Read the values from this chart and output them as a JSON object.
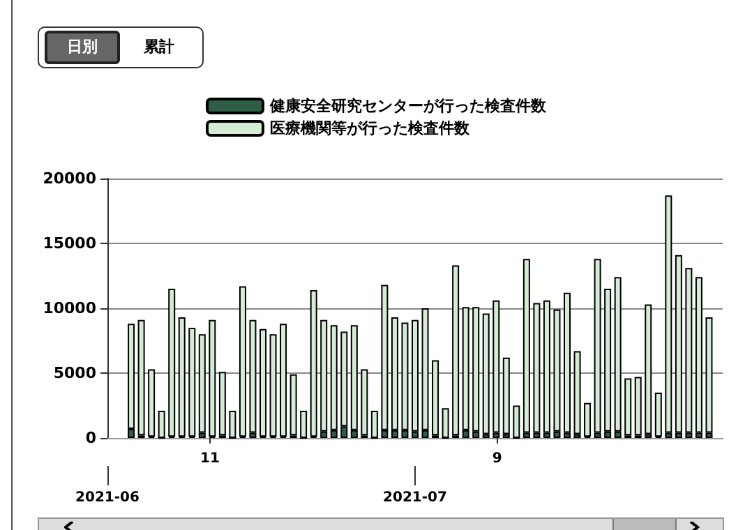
{
  "chart_data": {
    "type": "bar",
    "stacked": true,
    "annotations": [
      "日別",
      "累計"
    ],
    "x": [
      "2021-06-03",
      "2021-06-04",
      "2021-06-05",
      "2021-06-06",
      "2021-06-07",
      "2021-06-08",
      "2021-06-09",
      "2021-06-10",
      "2021-06-11",
      "2021-06-12",
      "2021-06-13",
      "2021-06-14",
      "2021-06-15",
      "2021-06-16",
      "2021-06-17",
      "2021-06-18",
      "2021-06-19",
      "2021-06-20",
      "2021-06-21",
      "2021-06-22",
      "2021-06-23",
      "2021-06-24",
      "2021-06-25",
      "2021-06-26",
      "2021-06-27",
      "2021-06-28",
      "2021-06-29",
      "2021-06-30",
      "2021-07-01",
      "2021-07-02",
      "2021-07-03",
      "2021-07-04",
      "2021-07-05",
      "2021-07-06",
      "2021-07-07",
      "2021-07-08",
      "2021-07-09",
      "2021-07-10",
      "2021-07-11",
      "2021-07-12",
      "2021-07-13",
      "2021-07-14",
      "2021-07-15",
      "2021-07-16",
      "2021-07-17",
      "2021-07-18",
      "2021-07-19",
      "2021-07-20",
      "2021-07-21",
      "2021-07-22",
      "2021-07-23",
      "2021-07-24",
      "2021-07-25",
      "2021-07-26",
      "2021-07-27",
      "2021-07-28",
      "2021-07-29",
      "2021-07-30"
    ],
    "series": [
      {
        "name": "健康安全研究センターが行った検査件数",
        "color": "#2e5e45",
        "values": [
          700,
          200,
          100,
          0,
          100,
          100,
          100,
          400,
          100,
          200,
          0,
          100,
          400,
          100,
          100,
          100,
          200,
          0,
          100,
          500,
          600,
          900,
          600,
          200,
          0,
          600,
          600,
          600,
          500,
          600,
          200,
          0,
          200,
          600,
          500,
          300,
          400,
          300,
          0,
          400,
          400,
          400,
          500,
          400,
          300,
          100,
          400,
          500,
          500,
          200,
          200,
          300,
          100,
          400,
          400,
          400,
          400,
          400
        ]
      },
      {
        "name": "医療機関等が行った検査件数",
        "color": "#d4ecd4",
        "values": [
          8100,
          8900,
          5200,
          2100,
          11400,
          9200,
          8400,
          7600,
          9000,
          4900,
          2100,
          11600,
          8700,
          8300,
          7900,
          8700,
          4700,
          2100,
          11300,
          8600,
          8100,
          7300,
          8100,
          5100,
          2100,
          11200,
          8700,
          8300,
          8600,
          9400,
          5800,
          2300,
          13100,
          9500,
          9600,
          9300,
          10200,
          5900,
          2500,
          13400,
          10000,
          10200,
          9400,
          10800,
          6400,
          2600,
          13400,
          11000,
          11900,
          4400,
          4500,
          10000,
          3400,
          18300,
          13700,
          12700,
          12000,
          8900
        ]
      }
    ],
    "xlim": [
      "2021-06-01",
      "2021-07-31"
    ],
    "x2lim": [
      "2021-06-01",
      "2021-07-31"
    ],
    "xticks": [
      {
        "value": "2021-06-11",
        "label": "11"
      },
      {
        "value": "2021-07-09",
        "label": "9"
      }
    ],
    "x2ticks": [
      {
        "value": "2021-06-01",
        "label": "2021-06"
      },
      {
        "value": "2021-07-01",
        "label": "2021-07"
      }
    ],
    "ylim": [
      0,
      20000
    ],
    "yticks": [
      0,
      5000,
      10000,
      15000,
      20000
    ],
    "grid": "y",
    "legend": "top"
  }
}
